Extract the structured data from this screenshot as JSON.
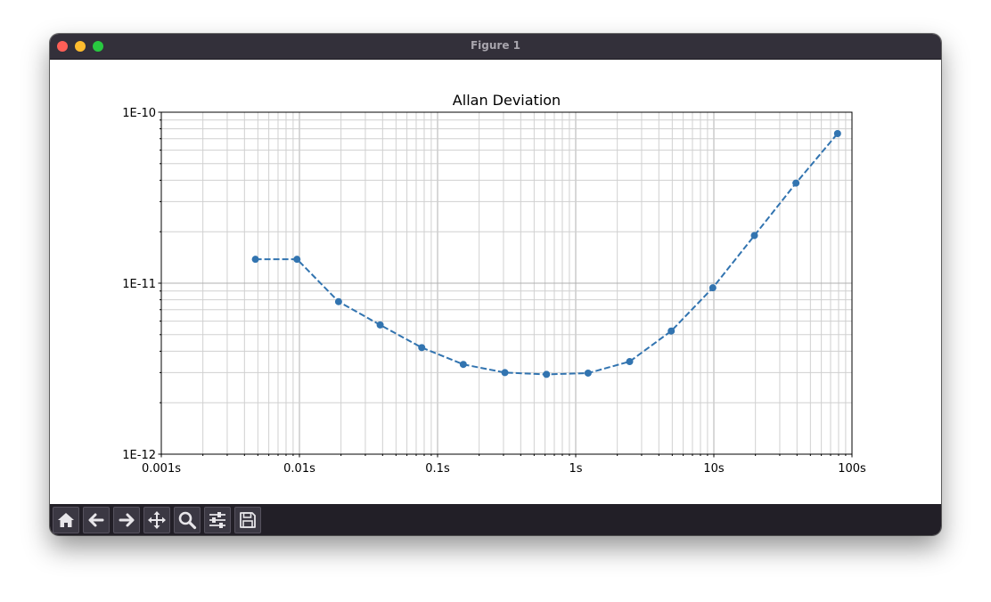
{
  "window": {
    "title": "Figure 1"
  },
  "toolbar": {
    "buttons": [
      {
        "icon": "home-icon"
      },
      {
        "icon": "back-icon"
      },
      {
        "icon": "forward-icon"
      },
      {
        "icon": "pan-icon"
      },
      {
        "icon": "zoom-icon"
      },
      {
        "icon": "configure-subplots-icon"
      },
      {
        "icon": "save-icon"
      }
    ]
  },
  "chart_data": {
    "type": "line",
    "title": "Allan Deviation",
    "xlabel": "",
    "ylabel": "",
    "xscale": "log",
    "yscale": "log",
    "xlim": [
      0.001,
      100
    ],
    "ylim": [
      1e-12,
      1e-10
    ],
    "x_tick_labels": [
      "0.001s",
      "0.01s",
      "0.1s",
      "1s",
      "10s",
      "100s"
    ],
    "y_tick_labels": [
      "1E-12",
      "1E-11",
      "1E-10"
    ],
    "grid": "major and minor",
    "line_style": "dashed with circle markers",
    "series_color": "#3274b0",
    "series": [
      {
        "x": [
          0.0048,
          0.0096,
          0.0192,
          0.0384,
          0.0768,
          0.1536,
          0.3072,
          0.6144,
          1.2288,
          2.4576,
          4.9152,
          9.8304,
          19.6608,
          39.3216,
          78.6432
        ],
        "y": [
          1.38e-11,
          1.38e-11,
          7.8e-12,
          5.7e-12,
          4.2e-12,
          3.35e-12,
          3e-12,
          2.93e-12,
          2.98e-12,
          3.48e-12,
          5.25e-12,
          9.4e-12,
          1.9e-11,
          3.85e-11,
          7.5e-11
        ]
      }
    ]
  }
}
